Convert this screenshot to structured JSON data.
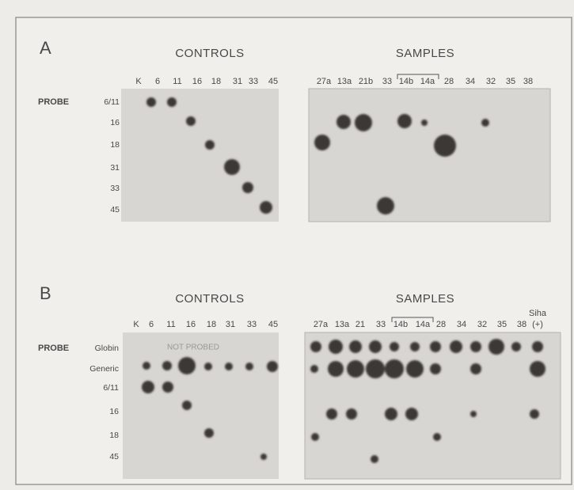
{
  "panels": [
    {
      "label": "A",
      "left_heading": "CONTROLS",
      "right_heading": "SAMPLES",
      "control_lanes": [
        "K",
        "6",
        "11",
        "16",
        "18",
        "31",
        "33",
        "45"
      ],
      "sample_lanes": [
        "27a",
        "13a",
        "21b",
        "33",
        "14b",
        "14a",
        "28",
        "34",
        "32",
        "35",
        "38"
      ],
      "probe_heading": "PROBE",
      "probes": [
        "6/11",
        "16",
        "18",
        "31",
        "33",
        "45"
      ]
    },
    {
      "label": "B",
      "left_heading": "CONTROLS",
      "right_heading": "SAMPLES",
      "control_lanes": [
        "K",
        "6",
        "11",
        "16",
        "18",
        "31",
        "33",
        "45"
      ],
      "sample_lanes": [
        "27a",
        "13a",
        "21",
        "33",
        "14b",
        "14a",
        "28",
        "34",
        "32",
        "35",
        "38",
        "(+)"
      ],
      "extra_lane_label": "Siha",
      "probe_heading": "PROBE",
      "probes": [
        "Globin",
        "Generic",
        "6/11",
        "16",
        "18",
        "45"
      ],
      "note": "NOT PROBED"
    }
  ]
}
